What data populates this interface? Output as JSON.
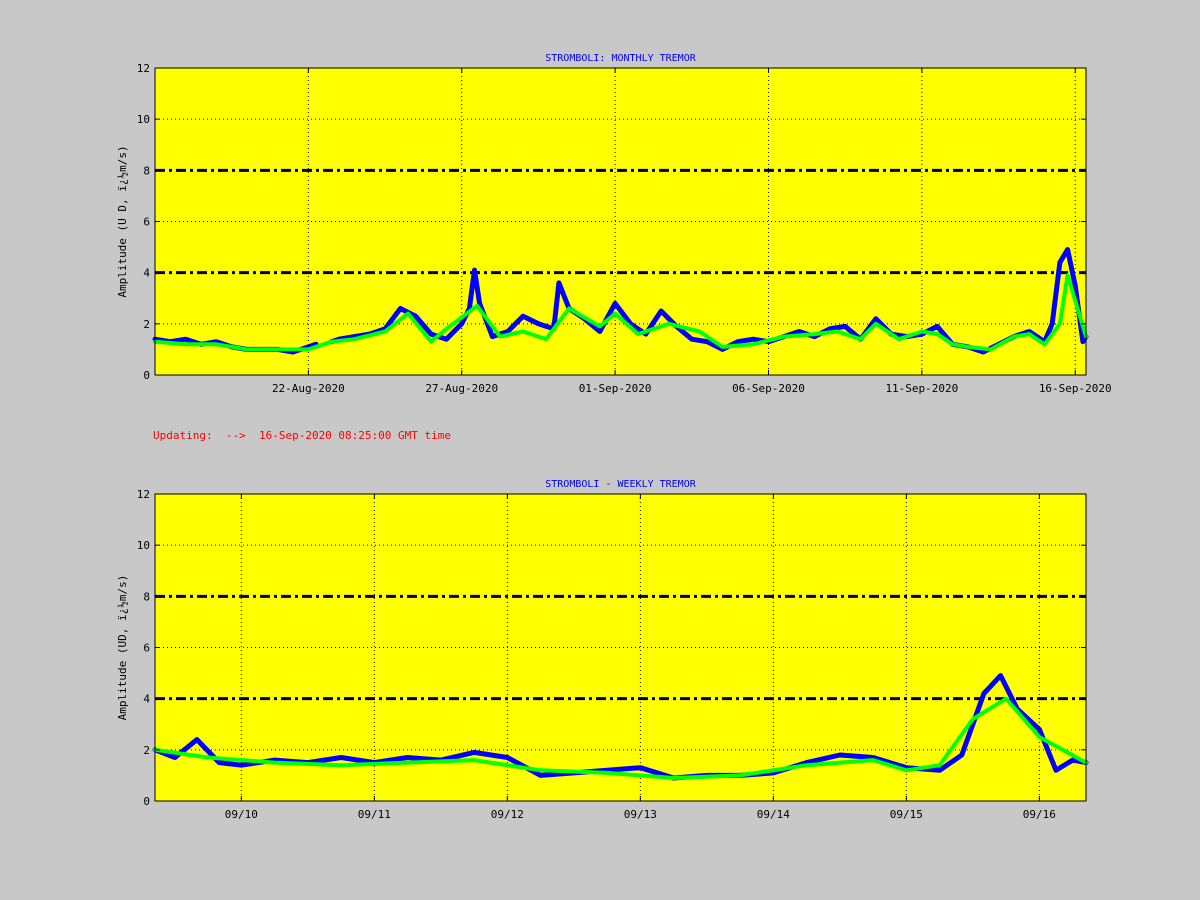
{
  "update_note": "Updating:  -->  16-Sep-2020 08:25:00 GMT time",
  "colors": {
    "background": "#c8c8c8",
    "plot_background": "#ffff00",
    "raw_series": "#0000ff",
    "smoothed_series": "#00ff00",
    "threshold_lines": "#000000",
    "title_text": "#0000ee",
    "update_text": "#ff0000"
  },
  "chart_data": [
    {
      "type": "line",
      "title": "STROMBOLI: MONTHLY TREMOR",
      "ylabel": "Amplitude   (U D,  ï¿½m/s)",
      "xlabel": "",
      "xlim": [
        "2020-08-17T00:00",
        "2020-09-16T08:25"
      ],
      "ylim": [
        0,
        12
      ],
      "yticks": [
        0,
        2,
        4,
        6,
        8,
        10,
        12
      ],
      "xticks": [
        {
          "at": "2020-08-22T00:00",
          "label": "22-Aug-2020"
        },
        {
          "at": "2020-08-27T00:00",
          "label": "27-Aug-2020"
        },
        {
          "at": "2020-09-01T00:00",
          "label": "01-Sep-2020"
        },
        {
          "at": "2020-09-06T00:00",
          "label": "06-Sep-2020"
        },
        {
          "at": "2020-09-11T00:00",
          "label": "11-Sep-2020"
        },
        {
          "at": "2020-09-16T00:00",
          "label": "16-Sep-2020"
        }
      ],
      "grid": true,
      "threshold_lines": [
        4,
        8
      ],
      "series": [
        {
          "style": "raw",
          "color": "#0000ff",
          "x": [
            "2020-08-17T00:00",
            "2020-08-17T12:00",
            "2020-08-18T00:00",
            "2020-08-18T12:00",
            "2020-08-19T00:00",
            "2020-08-19T12:00",
            "2020-08-20T00:00",
            "2020-08-20T12:00",
            "2020-08-21T00:00",
            "2020-08-21T12:00",
            "2020-08-22T00:00",
            "2020-08-22T06:00",
            "2020-08-22T12:00",
            "2020-08-22T18:00",
            "2020-08-23T00:00",
            "2020-08-23T12:00",
            "2020-08-24T00:00",
            "2020-08-24T12:00",
            "2020-08-25T00:00",
            "2020-08-25T12:00",
            "2020-08-26T00:00",
            "2020-08-26T12:00",
            "2020-08-27T00:00",
            "2020-08-27T06:00",
            "2020-08-27T10:00",
            "2020-08-27T14:00",
            "2020-08-28T00:00",
            "2020-08-28T12:00",
            "2020-08-29T00:00",
            "2020-08-29T12:00",
            "2020-08-30T00:00",
            "2020-08-30T04:00",
            "2020-08-30T12:00",
            "2020-08-31T00:00",
            "2020-08-31T12:00",
            "2020-09-01T00:00",
            "2020-09-01T12:00",
            "2020-09-02T00:00",
            "2020-09-02T12:00",
            "2020-09-03T00:00",
            "2020-09-03T12:00",
            "2020-09-04T00:00",
            "2020-09-04T12:00",
            "2020-09-05T00:00",
            "2020-09-05T12:00",
            "2020-09-06T00:00",
            "2020-09-06T12:00",
            "2020-09-07T00:00",
            "2020-09-07T12:00",
            "2020-09-08T00:00",
            "2020-09-08T12:00",
            "2020-09-09T00:00",
            "2020-09-09T12:00",
            "2020-09-10T00:00",
            "2020-09-10T12:00",
            "2020-09-11T00:00",
            "2020-09-11T12:00",
            "2020-09-12T00:00",
            "2020-09-12T12:00",
            "2020-09-13T00:00",
            "2020-09-13T12:00",
            "2020-09-14T00:00",
            "2020-09-14T12:00",
            "2020-09-15T00:00",
            "2020-09-15T06:00",
            "2020-09-15T12:00",
            "2020-09-15T18:00",
            "2020-09-16T00:00",
            "2020-09-16T06:00",
            "2020-09-16T08:25"
          ],
          "y": [
            1.4,
            1.3,
            1.4,
            1.2,
            1.3,
            1.1,
            1.0,
            1.0,
            1.0,
            0.9,
            1.1,
            1.2,
            null,
            1.3,
            1.4,
            1.5,
            1.6,
            1.8,
            2.6,
            2.3,
            1.6,
            1.4,
            2.0,
            2.6,
            4.1,
            2.8,
            1.5,
            1.7,
            2.3,
            2.0,
            1.8,
            3.6,
            2.6,
            2.2,
            1.7,
            2.8,
            2.0,
            1.6,
            2.5,
            1.9,
            1.4,
            1.3,
            1.0,
            1.3,
            1.4,
            1.3,
            1.5,
            1.7,
            1.5,
            1.8,
            1.9,
            1.4,
            2.2,
            1.6,
            1.5,
            1.6,
            1.9,
            1.2,
            1.1,
            0.9,
            1.2,
            1.5,
            1.7,
            1.3,
            2.0,
            4.4,
            4.9,
            3.5,
            1.3,
            1.5
          ]
        },
        {
          "style": "smoothed",
          "color": "#00ff00",
          "x": [
            "2020-08-17T00:00",
            "2020-08-18T00:00",
            "2020-08-19T00:00",
            "2020-08-20T00:00",
            "2020-08-21T00:00",
            "2020-08-22T00:00",
            "2020-08-22T18:00",
            "2020-08-23T12:00",
            "2020-08-24T12:00",
            "2020-08-25T06:00",
            "2020-08-26T00:00",
            "2020-08-26T12:00",
            "2020-08-27T12:00",
            "2020-08-28T06:00",
            "2020-08-29T00:00",
            "2020-08-29T18:00",
            "2020-08-30T12:00",
            "2020-08-31T12:00",
            "2020-09-01T00:00",
            "2020-09-01T18:00",
            "2020-09-02T18:00",
            "2020-09-03T18:00",
            "2020-09-04T12:00",
            "2020-09-05T12:00",
            "2020-09-06T12:00",
            "2020-09-07T12:00",
            "2020-09-08T06:00",
            "2020-09-09T00:00",
            "2020-09-09T12:00",
            "2020-09-10T06:00",
            "2020-09-11T00:00",
            "2020-09-11T12:00",
            "2020-09-12T00:00",
            "2020-09-12T12:00",
            "2020-09-13T06:00",
            "2020-09-14T00:00",
            "2020-09-14T12:00",
            "2020-09-15T00:00",
            "2020-09-15T12:00",
            "2020-09-15T18:00",
            "2020-09-16T08:25"
          ],
          "y": [
            1.3,
            1.2,
            1.2,
            1.0,
            1.0,
            1.0,
            1.3,
            1.4,
            1.7,
            2.4,
            1.3,
            1.8,
            2.7,
            1.5,
            1.7,
            1.4,
            2.6,
            1.9,
            2.4,
            1.6,
            2.0,
            1.7,
            1.1,
            1.2,
            1.5,
            1.6,
            1.7,
            1.4,
            2.0,
            1.4,
            1.7,
            1.6,
            1.2,
            1.1,
            1.0,
            1.5,
            1.6,
            1.2,
            2.0,
            3.9,
            1.5
          ]
        }
      ]
    },
    {
      "type": "line",
      "title": "STROMBOLI - WEEKLY TREMOR",
      "ylabel": "Amplitude (UD, ï¿½m/s)",
      "xlabel": "",
      "xlim": [
        "2020-09-09T08:25",
        "2020-09-16T08:25"
      ],
      "ylim": [
        0,
        12
      ],
      "yticks": [
        0,
        2,
        4,
        6,
        8,
        10,
        12
      ],
      "xticks": [
        {
          "at": "2020-09-10T00:00",
          "label": "09/10"
        },
        {
          "at": "2020-09-11T00:00",
          "label": "09/11"
        },
        {
          "at": "2020-09-12T00:00",
          "label": "09/12"
        },
        {
          "at": "2020-09-13T00:00",
          "label": "09/13"
        },
        {
          "at": "2020-09-14T00:00",
          "label": "09/14"
        },
        {
          "at": "2020-09-15T00:00",
          "label": "09/15"
        },
        {
          "at": "2020-09-16T00:00",
          "label": "09/16"
        }
      ],
      "grid": true,
      "threshold_lines": [
        4,
        8
      ],
      "series": [
        {
          "style": "raw",
          "color": "#0000ff",
          "x": [
            "2020-09-09T08:25",
            "2020-09-09T12:00",
            "2020-09-09T16:00",
            "2020-09-09T20:00",
            "2020-09-10T00:00",
            "2020-09-10T06:00",
            "2020-09-10T12:00",
            "2020-09-10T18:00",
            "2020-09-11T00:00",
            "2020-09-11T06:00",
            "2020-09-11T12:00",
            "2020-09-11T18:00",
            "2020-09-12T00:00",
            "2020-09-12T06:00",
            "2020-09-12T12:00",
            "2020-09-12T18:00",
            "2020-09-13T00:00",
            "2020-09-13T06:00",
            "2020-09-13T12:00",
            "2020-09-13T18:00",
            "2020-09-14T00:00",
            "2020-09-14T06:00",
            "2020-09-14T12:00",
            "2020-09-14T18:00",
            "2020-09-15T00:00",
            "2020-09-15T06:00",
            "2020-09-15T10:00",
            "2020-09-15T14:00",
            "2020-09-15T17:00",
            "2020-09-15T20:00",
            "2020-09-16T00:00",
            "2020-09-16T03:00",
            "2020-09-16T06:00",
            "2020-09-16T08:25"
          ],
          "y": [
            2.0,
            1.7,
            2.4,
            1.5,
            1.4,
            1.6,
            1.5,
            1.7,
            1.5,
            1.7,
            1.6,
            1.9,
            1.7,
            1.0,
            1.1,
            1.2,
            1.3,
            0.9,
            1.0,
            1.0,
            1.1,
            1.5,
            1.8,
            1.7,
            1.3,
            1.2,
            1.8,
            4.2,
            4.9,
            3.6,
            2.8,
            1.2,
            1.6,
            1.5
          ]
        },
        {
          "style": "smoothed",
          "color": "#00ff00",
          "x": [
            "2020-09-09T08:25",
            "2020-09-09T18:00",
            "2020-09-10T06:00",
            "2020-09-10T18:00",
            "2020-09-11T06:00",
            "2020-09-11T18:00",
            "2020-09-12T06:00",
            "2020-09-12T18:00",
            "2020-09-13T06:00",
            "2020-09-13T18:00",
            "2020-09-14T06:00",
            "2020-09-14T18:00",
            "2020-09-15T00:00",
            "2020-09-15T06:00",
            "2020-09-15T12:00",
            "2020-09-15T18:00",
            "2020-09-16T00:00",
            "2020-09-16T08:25"
          ],
          "y": [
            2.0,
            1.7,
            1.5,
            1.4,
            1.5,
            1.6,
            1.2,
            1.1,
            0.9,
            1.0,
            1.4,
            1.6,
            1.2,
            1.4,
            3.2,
            4.0,
            2.5,
            1.5
          ]
        }
      ]
    }
  ]
}
